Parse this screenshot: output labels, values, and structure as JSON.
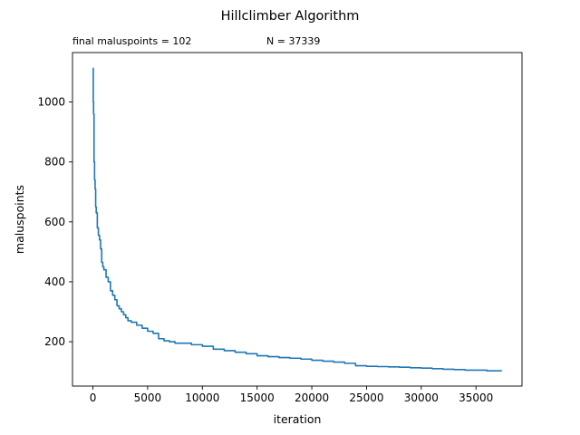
{
  "chart_data": {
    "type": "line",
    "title": "Hillclimber Algorithm",
    "subtitle_left": "final maluspoints = 102",
    "subtitle_right": "N = 37339",
    "xlabel": "iteration",
    "ylabel": "maluspoints",
    "xlim": [
      -1867,
      39206
    ],
    "ylim": [
      52,
      1165
    ],
    "xticks": [
      0,
      5000,
      10000,
      15000,
      20000,
      25000,
      30000,
      35000
    ],
    "yticks": [
      200,
      400,
      600,
      800,
      1000
    ],
    "grid": false,
    "line_color": "#1f77b4",
    "series": [
      {
        "x": [
          0,
          30,
          60,
          100,
          150,
          200,
          250,
          300,
          400,
          500,
          600,
          700,
          800,
          900,
          1000,
          1200,
          1400,
          1600,
          1800,
          2000,
          2200,
          2400,
          2600,
          2800,
          3000,
          3200,
          3500,
          4000,
          4500,
          5000,
          5500,
          6000,
          6500,
          7000,
          7500,
          8000,
          9000,
          10000,
          11000,
          12000,
          13000,
          14000,
          15000,
          16000,
          17000,
          18000,
          19000,
          20000,
          21000,
          22000,
          23000,
          24000,
          25000,
          26000,
          27000,
          28000,
          29000,
          30000,
          31000,
          32000,
          33000,
          34000,
          35000,
          36000,
          37339
        ],
        "y": [
          1113,
          1000,
          960,
          800,
          740,
          710,
          650,
          630,
          580,
          555,
          540,
          510,
          465,
          450,
          440,
          415,
          400,
          370,
          355,
          340,
          320,
          310,
          300,
          290,
          280,
          270,
          265,
          255,
          245,
          235,
          228,
          210,
          203,
          200,
          195,
          195,
          190,
          185,
          175,
          170,
          165,
          160,
          153,
          150,
          147,
          145,
          142,
          138,
          135,
          132,
          128,
          120,
          118,
          117,
          116,
          115,
          113,
          112,
          110,
          108,
          107,
          105,
          105,
          103,
          102
        ]
      }
    ]
  }
}
